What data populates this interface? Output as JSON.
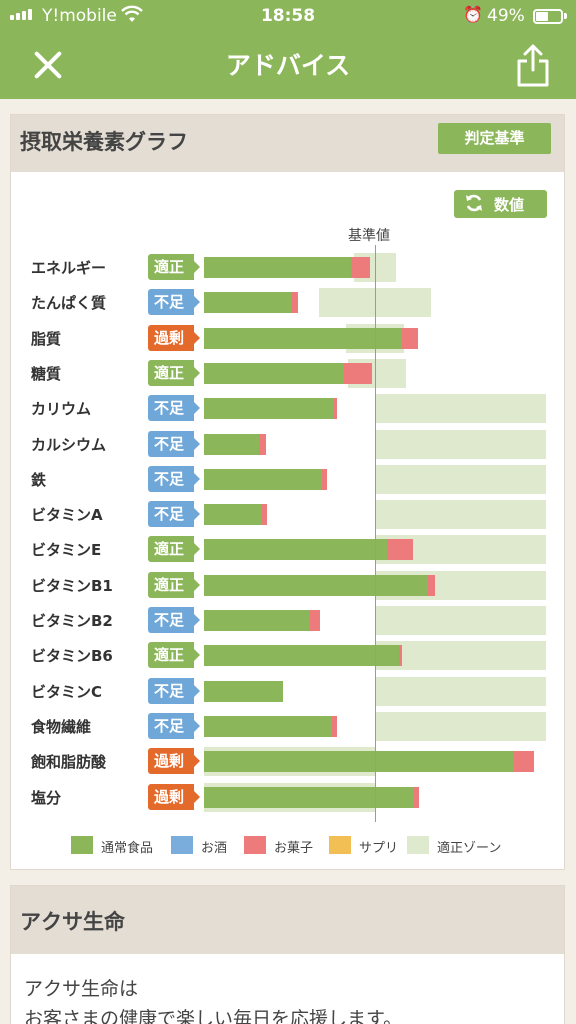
{
  "status": {
    "carrier": "Y!mobile",
    "time": "18:58",
    "battery": "49%",
    "battery_level": 0.49,
    "wifi_icon": "wifi-icon",
    "alarm_icon": "alarm-icon"
  },
  "nav": {
    "title": "アドバイス",
    "close_icon": "close-icon",
    "share_icon": "share-icon"
  },
  "nutrition_card": {
    "title": "摂取栄養素グラフ",
    "criteria_button": "判定基準",
    "value_button": "数値",
    "refresh_icon": "refresh-icon",
    "standard_label": "基準値"
  },
  "colors": {
    "brand": "#8cb65a",
    "ok": "#8cb65a",
    "low": "#6fa7d8",
    "high": "#e46a2c",
    "food": "#8cb65a",
    "alcohol": "#7aaddb",
    "snack": "#ee7b7b",
    "supplement": "#f2bf54",
    "zone": "#dfe9cd"
  },
  "status_labels": {
    "ok": "適正",
    "low": "不足",
    "high": "過剰"
  },
  "chart_data": {
    "type": "bar",
    "orientation": "horizontal",
    "unit": "% of standard value",
    "standard_value": 100,
    "categories": [
      "エネルギー",
      "たんぱく質",
      "脂質",
      "糖質",
      "カリウム",
      "カルシウム",
      "鉄",
      "ビタミンA",
      "ビタミンE",
      "ビタミンB1",
      "ビタミンB2",
      "ビタミンB6",
      "ビタミンC",
      "食物繊維",
      "飽和脂肪酸",
      "塩分"
    ],
    "judgements": [
      "ok",
      "low",
      "high",
      "ok",
      "low",
      "low",
      "low",
      "low",
      "ok",
      "ok",
      "low",
      "ok",
      "low",
      "low",
      "high",
      "high"
    ],
    "series": [
      {
        "name": "通常食品",
        "key": "food",
        "values": [
          86,
          51,
          116,
          82,
          76,
          32,
          69,
          34,
          107,
          131,
          62,
          114,
          46,
          75,
          181,
          123
        ]
      },
      {
        "name": "お酒",
        "key": "alcohol",
        "values": [
          0,
          0,
          0,
          0,
          0,
          0,
          0,
          0,
          0,
          0,
          0,
          0,
          0,
          0,
          0,
          0
        ]
      },
      {
        "name": "お菓子",
        "key": "snack",
        "values": [
          11,
          4,
          9,
          16,
          2,
          4,
          3,
          3,
          15,
          4,
          6,
          2,
          0,
          3,
          12,
          3
        ]
      },
      {
        "name": "サプリ",
        "key": "supplement",
        "values": [
          0,
          0,
          0,
          0,
          0,
          0,
          0,
          0,
          0,
          0,
          0,
          0,
          0,
          0,
          0,
          0
        ]
      }
    ],
    "ok_zone": [
      [
        88,
        112
      ],
      [
        67,
        133
      ],
      [
        83,
        117
      ],
      [
        84,
        118
      ],
      [
        100,
        200
      ],
      [
        100,
        200
      ],
      [
        100,
        200
      ],
      [
        100,
        200
      ],
      [
        100,
        200
      ],
      [
        100,
        200
      ],
      [
        100,
        200
      ],
      [
        100,
        200
      ],
      [
        100,
        200
      ],
      [
        100,
        200
      ],
      [
        0,
        100
      ],
      [
        0,
        100
      ]
    ],
    "legend": [
      "通常食品",
      "お酒",
      "お菓子",
      "サプリ",
      "適正ゾーン"
    ],
    "legend_placement": "bottom",
    "grid": false
  },
  "company_card": {
    "title": "アクサ生命",
    "lines": [
      "アクサ生命は",
      "お客さまの健康で楽しい毎日を応援します。"
    ]
  }
}
